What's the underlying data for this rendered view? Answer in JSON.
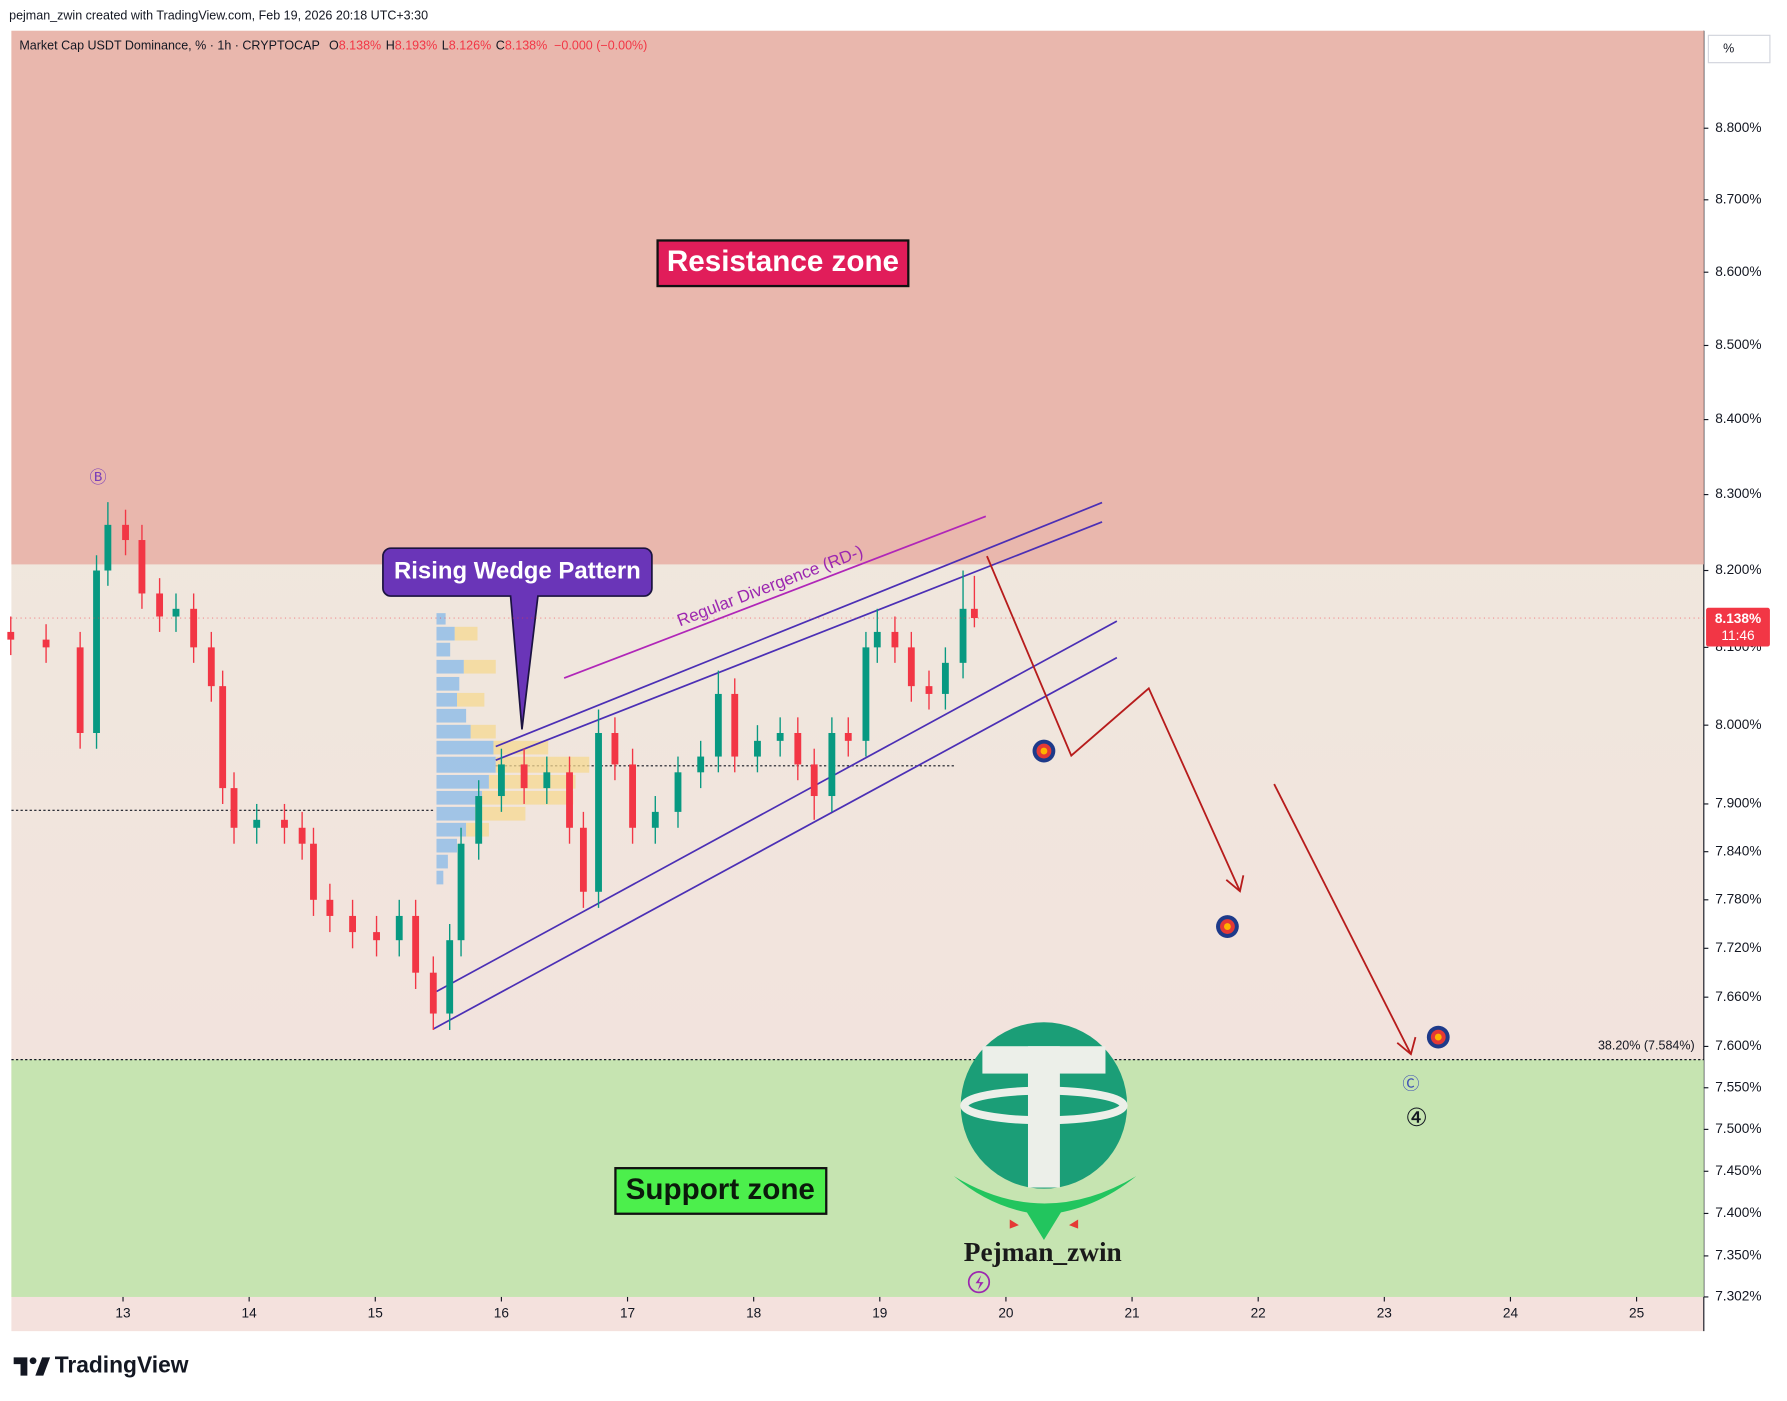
{
  "header": {
    "credit": "pejman_zwin created with TradingView.com, Feb 19, 2026 20:18 UTC+3:30",
    "symbol": "Market Cap USDT Dominance, % · 1h · CRYPTOCAP",
    "ohlc": [
      {
        "key": "O",
        "value": "8.138%"
      },
      {
        "key": "H",
        "value": "8.193%"
      },
      {
        "key": "L",
        "value": "8.126%"
      },
      {
        "key": "C",
        "value": "8.138%"
      }
    ],
    "change": "−0.000 (−0.00%)"
  },
  "chart_data": {
    "type": "candlestick",
    "log": true,
    "x": [
      12.11,
      12.39,
      12.66,
      12.79,
      12.88,
      13.02,
      13.15,
      13.29,
      13.42,
      13.56,
      13.7,
      13.79,
      13.88,
      14.06,
      14.28,
      14.42,
      14.51,
      14.64,
      14.82,
      15.01,
      15.19,
      15.32,
      15.46,
      15.59,
      15.68,
      15.82,
      16.0,
      16.18,
      16.36,
      16.54,
      16.65,
      16.77,
      16.9,
      17.04,
      17.22,
      17.4,
      17.58,
      17.72,
      17.85,
      18.03,
      18.21,
      18.35,
      18.48,
      18.62,
      18.75,
      18.89,
      18.98,
      19.12,
      19.25,
      19.39,
      19.52,
      19.66,
      19.75
    ],
    "open": [
      8.12,
      8.11,
      8.1,
      7.99,
      8.2,
      8.26,
      8.24,
      8.17,
      8.14,
      8.15,
      8.1,
      8.05,
      7.92,
      7.87,
      7.88,
      7.87,
      7.85,
      7.78,
      7.76,
      7.74,
      7.73,
      7.76,
      7.69,
      7.64,
      7.73,
      7.85,
      7.91,
      7.95,
      7.92,
      7.94,
      7.87,
      7.79,
      7.99,
      7.95,
      7.87,
      7.89,
      7.94,
      7.96,
      8.04,
      7.96,
      7.98,
      7.99,
      7.95,
      7.91,
      7.99,
      7.98,
      8.1,
      8.12,
      8.1,
      8.05,
      8.04,
      8.08,
      8.15
    ],
    "high": [
      8.14,
      8.13,
      8.12,
      8.22,
      8.29,
      8.28,
      8.26,
      8.19,
      8.17,
      8.17,
      8.12,
      8.07,
      7.94,
      7.9,
      7.9,
      7.89,
      7.87,
      7.8,
      7.78,
      7.76,
      7.78,
      7.78,
      7.71,
      7.75,
      7.87,
      7.93,
      7.97,
      7.97,
      7.96,
      7.96,
      7.89,
      8.02,
      8.01,
      7.97,
      7.91,
      7.96,
      7.98,
      8.07,
      8.06,
      8.0,
      8.01,
      8.01,
      7.97,
      8.01,
      8.01,
      8.12,
      8.15,
      8.14,
      8.12,
      8.07,
      8.1,
      8.2,
      8.193
    ],
    "low": [
      8.09,
      8.08,
      7.97,
      7.97,
      8.18,
      8.22,
      8.15,
      8.12,
      8.12,
      8.08,
      8.03,
      7.9,
      7.85,
      7.85,
      7.85,
      7.83,
      7.76,
      7.74,
      7.72,
      7.71,
      7.71,
      7.67,
      7.62,
      7.62,
      7.71,
      7.83,
      7.89,
      7.9,
      7.9,
      7.85,
      7.77,
      7.77,
      7.93,
      7.85,
      7.85,
      7.87,
      7.92,
      7.94,
      7.94,
      7.94,
      7.96,
      7.93,
      7.88,
      7.89,
      7.96,
      7.96,
      8.08,
      8.08,
      8.03,
      8.02,
      8.02,
      8.06,
      8.126
    ],
    "close": [
      8.11,
      8.1,
      7.99,
      8.2,
      8.26,
      8.24,
      8.17,
      8.14,
      8.15,
      8.1,
      8.05,
      7.92,
      7.87,
      7.88,
      7.87,
      7.85,
      7.78,
      7.76,
      7.74,
      7.73,
      7.76,
      7.69,
      7.64,
      7.73,
      7.85,
      7.91,
      7.95,
      7.92,
      7.94,
      7.87,
      7.79,
      7.99,
      7.95,
      7.87,
      7.89,
      7.94,
      7.96,
      8.04,
      7.96,
      7.98,
      7.99,
      7.95,
      7.91,
      7.99,
      7.98,
      8.1,
      8.12,
      8.1,
      8.05,
      8.04,
      8.08,
      8.15,
      8.138
    ],
    "up_color": "#089981",
    "down_color": "#f23645",
    "xlim": [
      12.115,
      25.533
    ],
    "xticks": [
      13,
      14,
      15,
      16,
      17,
      18,
      19,
      20,
      21,
      22,
      23,
      24,
      25
    ],
    "ylim": [
      7.302,
      8.938
    ],
    "yticks": [
      {
        "value": 8.8,
        "label": "8.800%"
      },
      {
        "value": 8.7,
        "label": "8.700%"
      },
      {
        "value": 8.6,
        "label": "8.600%"
      },
      {
        "value": 8.5,
        "label": "8.500%"
      },
      {
        "value": 8.4,
        "label": "8.400%"
      },
      {
        "value": 8.3,
        "label": "8.300%"
      },
      {
        "value": 8.2,
        "label": "8.200%"
      },
      {
        "value": 8.1,
        "label": "8.100%"
      },
      {
        "value": 8.0,
        "label": "8.000%"
      },
      {
        "value": 7.9,
        "label": "7.900%"
      },
      {
        "value": 7.84,
        "label": "7.840%"
      },
      {
        "value": 7.78,
        "label": "7.780%"
      },
      {
        "value": 7.72,
        "label": "7.720%"
      },
      {
        "value": 7.66,
        "label": "7.660%"
      },
      {
        "value": 7.6,
        "label": "7.600%"
      },
      {
        "value": 7.55,
        "label": "7.550%"
      },
      {
        "value": 7.5,
        "label": "7.500%"
      },
      {
        "value": 7.45,
        "label": "7.450%"
      },
      {
        "value": 7.4,
        "label": "7.400%"
      },
      {
        "value": 7.35,
        "label": "7.350%"
      },
      {
        "value": 7.302,
        "label": "7.302%"
      }
    ],
    "scale_label": "%",
    "last_price": {
      "value": 8.138,
      "label": "8.138%",
      "countdown": "11:46"
    },
    "zones": [
      {
        "label": "Resistance zone",
        "low": 8.208,
        "color": "#e9b7ad"
      },
      {
        "label": "Support zone",
        "high": 7.584,
        "color": "#c6e4b1"
      }
    ],
    "fib_level": {
      "value": 7.584,
      "label": "38.20% (7.584%)"
    },
    "annotations": {
      "wedge": "Rising Wedge Pattern",
      "divergence": "Regular Divergence (RD-)",
      "wave_b": "Ⓑ",
      "wave_c": "Ⓒ",
      "wave_4": "④"
    },
    "watermark": "Pejman_zwin"
  },
  "footer": {
    "brand": "TradingView"
  }
}
